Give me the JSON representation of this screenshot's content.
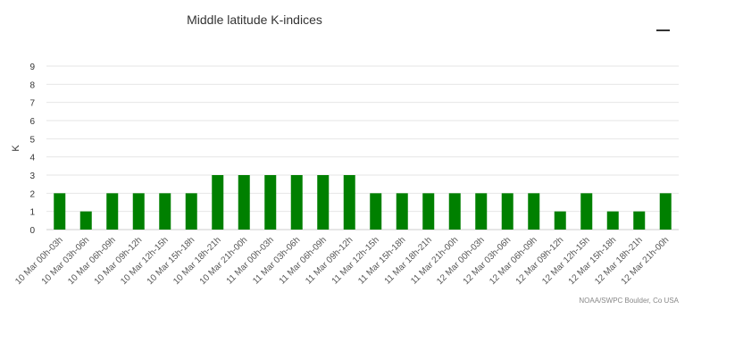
{
  "chart_data": {
    "type": "bar",
    "title": "Middle latitude K-indices",
    "xlabel": "",
    "ylabel": "K",
    "ylim": [
      0,
      9
    ],
    "y_ticks": [
      0,
      1,
      2,
      3,
      4,
      5,
      6,
      7,
      8,
      9
    ],
    "grid": true,
    "bar_color": "#008000",
    "categories": [
      "10 Mar 00h-03h",
      "10 Mar 03h-06h",
      "10 Mar 06h-09h",
      "10 Mar 09h-12h",
      "10 Mar 12h-15h",
      "10 Mar 15h-18h",
      "10 Mar 18h-21h",
      "10 Mar 21h-00h",
      "11 Mar 00h-03h",
      "11 Mar 03h-06h",
      "11 Mar 06h-09h",
      "11 Mar 09h-12h",
      "11 Mar 12h-15h",
      "11 Mar 15h-18h",
      "11 Mar 18h-21h",
      "11 Mar 21h-00h",
      "12 Mar 00h-03h",
      "12 Mar 03h-06h",
      "12 Mar 06h-09h",
      "12 Mar 09h-12h",
      "12 Mar 12h-15h",
      "12 Mar 15h-18h",
      "12 Mar 18h-21h",
      "12 Mar 21h-00h"
    ],
    "values": [
      2,
      1,
      2,
      2,
      2,
      2,
      3,
      3,
      3,
      3,
      3,
      3,
      2,
      2,
      2,
      2,
      2,
      2,
      2,
      1,
      2,
      1,
      1,
      2
    ],
    "credit": "NOAA/SWPC Boulder, Co USA"
  },
  "icons": {
    "menu": "hamburger-menu-icon"
  }
}
